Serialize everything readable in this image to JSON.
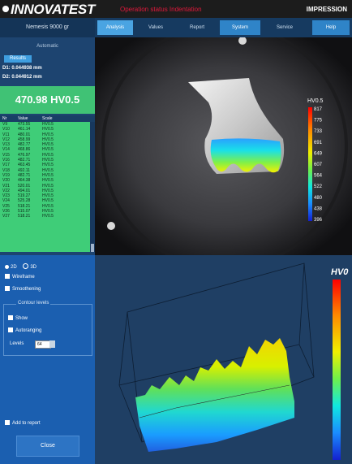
{
  "app": {
    "logo": "INNOVATEST",
    "banner_status": "Operation status    Indentation",
    "brand_right": "IMPRESSION"
  },
  "sidebar": {
    "header": "Nemesis 9000 gr",
    "subtitle": "Automatic",
    "mode_button": "Results",
    "d1": "D1: 0.044938 mm",
    "d2": "D2: 0.044912 mm",
    "result": "470.98 HV0.5",
    "table_headers": [
      "Nr",
      "Value",
      "Scale"
    ],
    "rows": [
      [
        "V9",
        "473.55",
        "HV0.5"
      ],
      [
        "V10",
        "461.14",
        "HV0.5"
      ],
      [
        "V11",
        "480.01",
        "HV0.5"
      ],
      [
        "V12",
        "458.99",
        "HV0.5"
      ],
      [
        "V13",
        "482.77",
        "HV0.5"
      ],
      [
        "V14",
        "468.86",
        "HV0.5"
      ],
      [
        "V15",
        "476.97",
        "HV0.5"
      ],
      [
        "V16",
        "482.71",
        "HV0.5"
      ],
      [
        "V17",
        "463.45",
        "HV0.5"
      ],
      [
        "V18",
        "492.11",
        "HV0.5"
      ],
      [
        "V19",
        "482.71",
        "HV0.5"
      ],
      [
        "V20",
        "464.38",
        "HV0.5"
      ],
      [
        "V21",
        "520.01",
        "HV0.5"
      ],
      [
        "V22",
        "494.01",
        "HV0.5"
      ],
      [
        "V23",
        "519.27",
        "HV0.5"
      ],
      [
        "V24",
        "525.28",
        "HV0.5"
      ],
      [
        "V25",
        "518.21",
        "HV0.5"
      ],
      [
        "V26",
        "515.07",
        "HV0.5"
      ],
      [
        "V27",
        "518.21",
        "HV0.5"
      ]
    ]
  },
  "tabs": [
    "Analysis",
    "Values",
    "Report",
    "System",
    "Service",
    "Help"
  ],
  "legend_micro": {
    "title": "HV0.5",
    "ticks": [
      "817",
      "775",
      "733",
      "691",
      "649",
      "607",
      "564",
      "522",
      "480",
      "438",
      "396"
    ]
  },
  "bottom_panel": {
    "radio_2d": "2D",
    "radio_3d": "3D",
    "wireframe": "Wireframe",
    "smoothing": "Smoothening",
    "group_title": "Contour levels",
    "show": "Show",
    "autorange": "Autoranging",
    "levels_label": "Levels",
    "levels_value": "64",
    "add_to_report": "Add to report",
    "close": "Close"
  },
  "plot3d": {
    "title": "HV0"
  },
  "colors": {
    "sidebar_bg": "#1d4470",
    "result_green": "#40c275",
    "tab_active": "#4aa4e2",
    "bottom_panel": "#1b5fb0",
    "brand_red": "#e0193c"
  }
}
